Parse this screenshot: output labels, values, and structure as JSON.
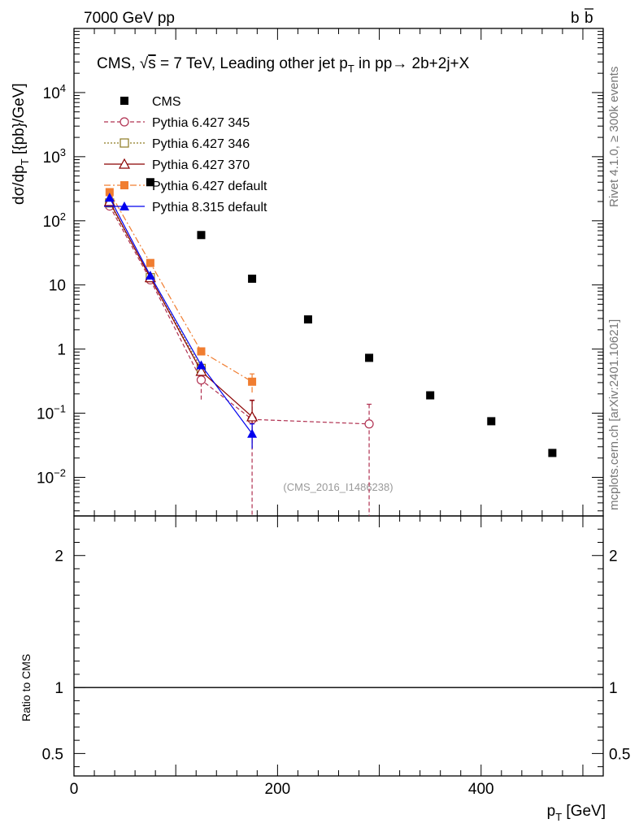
{
  "header": {
    "left": "7000 GeV pp",
    "right_b": "b",
    "right_bbar": "b"
  },
  "side_labels": {
    "rivet": "Rivet 4.1.0, ≥ 300k events",
    "mcplots": "mcplots.cern.ch [arXiv:2401.10621]"
  },
  "chart_data": {
    "type": "scatter",
    "title": "CMS, √s = 7 TeV, Leading other jet p_T in pp → 2b+2j+X",
    "title_parts": {
      "prefix": "CMS, √",
      "s": "s",
      "mid": " = 7 TeV, Leading other jet p",
      "sub": "T",
      "suffix": " in pp→  2b+2j+X"
    },
    "watermark": "(CMS_2016_I1486238)",
    "xlabel": {
      "main": "p",
      "sub": "T",
      "unit": " [GeV]"
    },
    "ylabel": {
      "main": "dσ/dp",
      "sub": "T",
      "unit": " [{pb}/GeV]"
    },
    "xlim": [
      0,
      520
    ],
    "ylim_log": [
      0.0025,
      100000
    ],
    "x_ticks": [
      0,
      200,
      400
    ],
    "y_ticks": [
      {
        "value": 0.01,
        "mant": "10",
        "exp": "−2"
      },
      {
        "value": 0.1,
        "mant": "10",
        "exp": "−1"
      },
      {
        "value": 1,
        "mant": "1",
        "exp": ""
      },
      {
        "value": 10,
        "mant": "10",
        "exp": ""
      },
      {
        "value": 100,
        "mant": "10",
        "exp": "2"
      },
      {
        "value": 1000,
        "mant": "10",
        "exp": "3"
      },
      {
        "value": 10000,
        "mant": "10",
        "exp": "4"
      }
    ],
    "series": [
      {
        "name": "CMS",
        "color": "#000000",
        "marker": "square",
        "line": "none",
        "x": [
          35,
          75,
          125,
          175,
          230,
          290,
          350,
          410,
          470
        ],
        "y": [
          180,
          400,
          60,
          12.5,
          2.9,
          0.73,
          0.19,
          0.075,
          0.024
        ]
      },
      {
        "name": "Pythia 6.427 345",
        "color": "#b03050",
        "marker": "circle-open",
        "line": "dashed",
        "x": [
          35,
          75,
          125,
          175,
          290
        ],
        "y": [
          170,
          12,
          0.33,
          0.08,
          0.068
        ],
        "err_low": [
          null,
          null,
          0.17,
          0.078,
          0.066
        ],
        "err_high": [
          null,
          null,
          0.15,
          0.08,
          0.07
        ]
      },
      {
        "name": "Pythia 6.427 346",
        "color": "#8c7a22",
        "marker": "square-open",
        "line": "dotted",
        "x": [
          35,
          75,
          125
        ],
        "y": [
          190,
          13,
          0.5
        ]
      },
      {
        "name": "Pythia 6.427 370",
        "color": "#8b0000",
        "marker": "triangle-open",
        "line": "solid",
        "x": [
          35,
          75,
          125,
          175
        ],
        "y": [
          200,
          13,
          0.45,
          0.088
        ],
        "err_low": [
          null,
          null,
          null,
          0.06
        ],
        "err_high": [
          null,
          null,
          null,
          0.07
        ]
      },
      {
        "name": "Pythia 6.427 default",
        "color": "#f07d30",
        "marker": "square",
        "line": "dashdot",
        "x": [
          35,
          75,
          125,
          175
        ],
        "y": [
          280,
          22,
          0.92,
          0.31
        ],
        "err_low": [
          null,
          null,
          null,
          0.1
        ],
        "err_high": [
          null,
          null,
          null,
          0.1
        ]
      },
      {
        "name": "Pythia 8.315 default",
        "color": "#0000ee",
        "marker": "triangle",
        "line": "solid",
        "x": [
          35,
          75,
          125,
          175
        ],
        "y": [
          230,
          14,
          0.56,
          0.048
        ],
        "err_low": [
          null,
          null,
          null,
          0.02
        ],
        "err_high": [
          null,
          null,
          null,
          0.02
        ]
      }
    ],
    "ratio": {
      "ylabel": "Ratio to CMS",
      "ylim": [
        0.33,
        2.3
      ],
      "ticks": [
        {
          "value": 0.5,
          "label": "0.5"
        },
        {
          "value": 1,
          "label": "1"
        },
        {
          "value": 2,
          "label": "2"
        }
      ],
      "reference": 1
    }
  }
}
